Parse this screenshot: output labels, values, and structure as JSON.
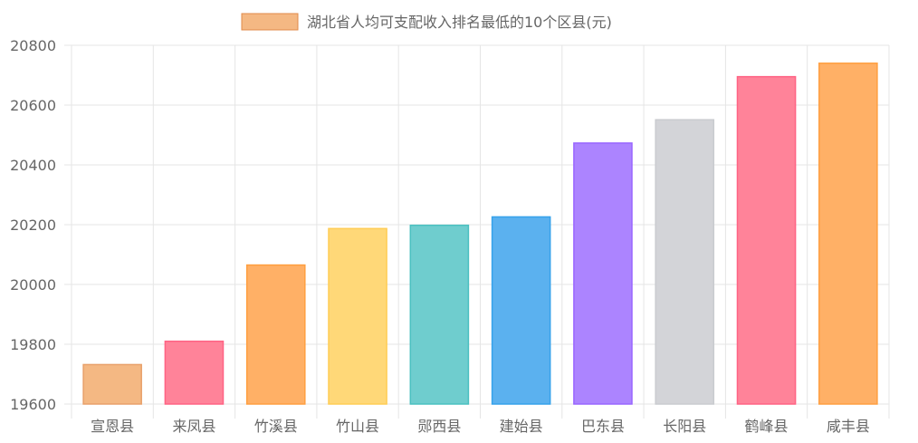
{
  "chart_data": {
    "type": "bar",
    "title": "",
    "legend": {
      "label": "湖北省人均可支配收入排名最低的10个区县(元)",
      "placement": "top",
      "swatch_fill": "#f4b883",
      "swatch_border": "#e08a4a"
    },
    "categories": [
      "宣恩县",
      "来凤县",
      "竹溪县",
      "竹山县",
      "郧西县",
      "建始县",
      "巴东县",
      "长阳县",
      "鹤峰县",
      "咸丰县"
    ],
    "series": [
      {
        "name": "湖北省人均可支配收入排名最低的10个区县(元)",
        "values": [
          19732,
          19810,
          20065,
          20187,
          20198,
          20226,
          20473,
          20551,
          20695,
          20740
        ]
      }
    ],
    "bar_colors": [
      "#f4b883",
      "#ff8399",
      "#ffb066",
      "#ffd878",
      "#6fcdce",
      "#5bb1ef",
      "#ac84ff",
      "#d3d4d8",
      "#ff8399",
      "#ffb066"
    ],
    "bar_border_colors": [
      "#e8a06a",
      "#ff6384",
      "#ff9f40",
      "#ffcd56",
      "#4bc0c0",
      "#36a2eb",
      "#9966ff",
      "#c9cbcf",
      "#ff6384",
      "#ff9f40"
    ],
    "ylim": [
      19600,
      20800
    ],
    "y_ticks": [
      19600,
      19800,
      20000,
      20200,
      20400,
      20600,
      20800
    ],
    "xlabel": "",
    "ylabel": "",
    "grid": true
  }
}
